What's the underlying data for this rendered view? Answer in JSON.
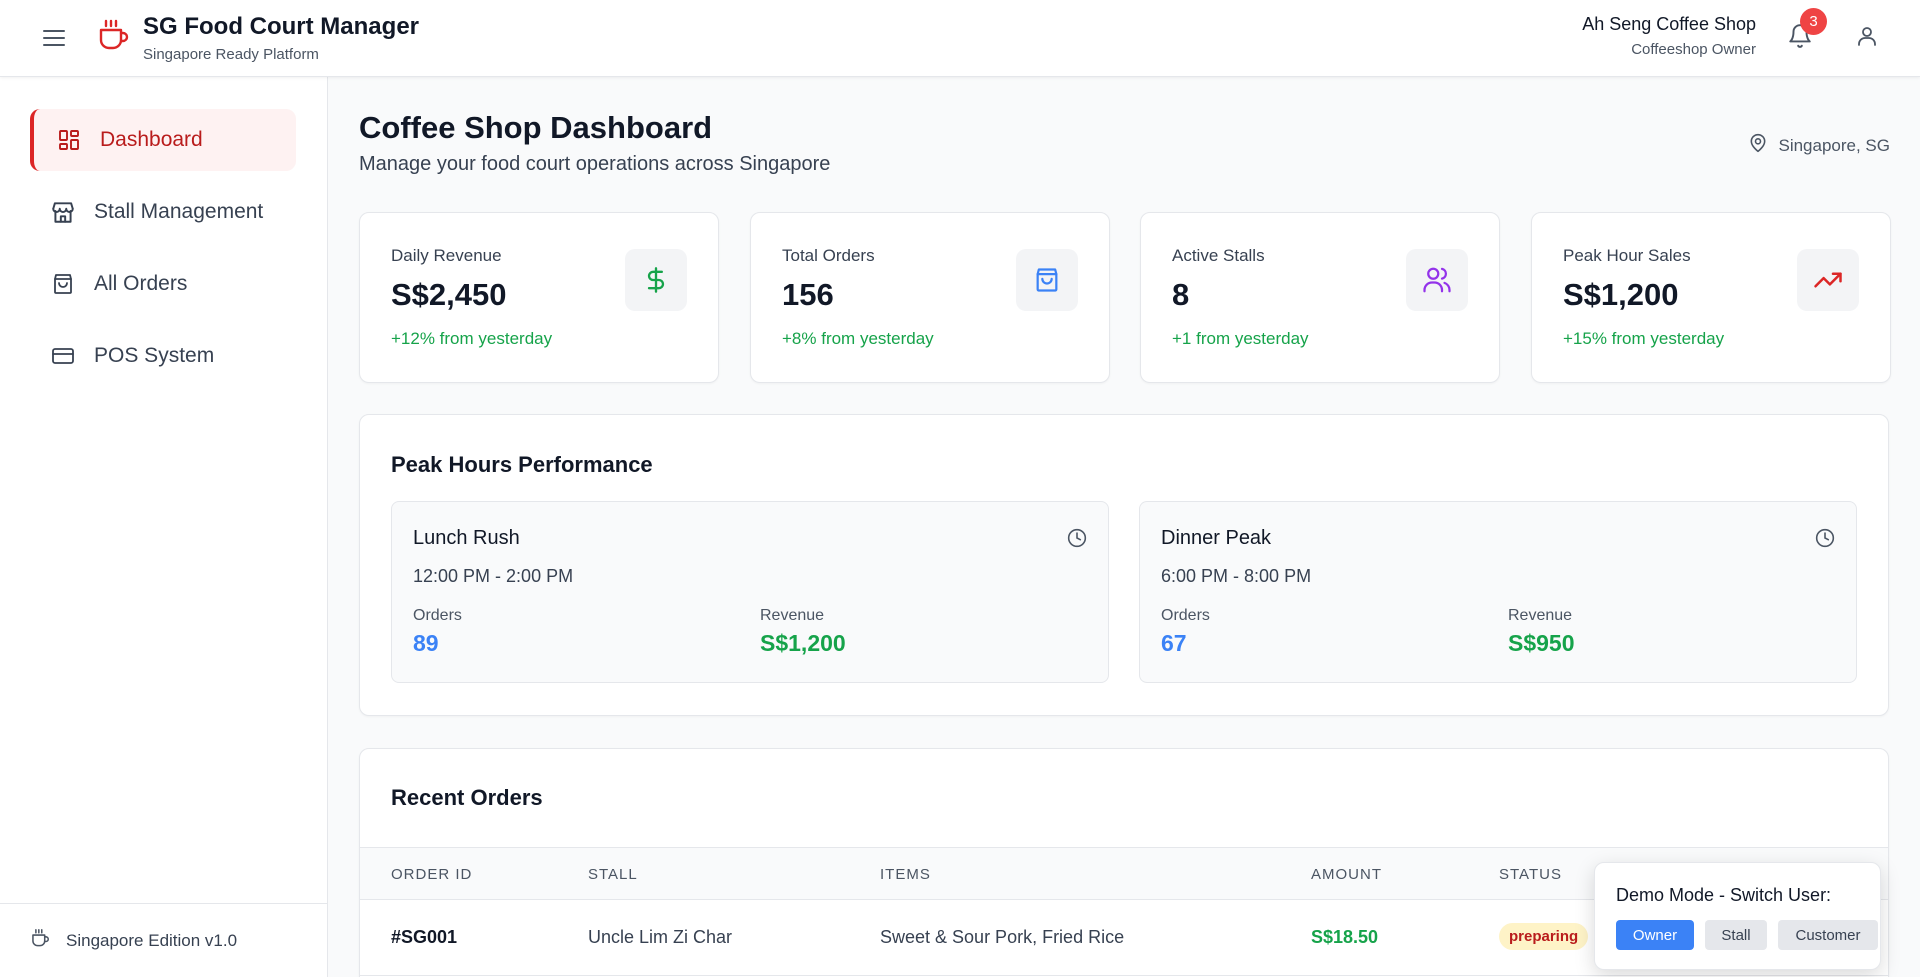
{
  "app": {
    "title": "SG Food Court Manager",
    "subtitle": "Singapore Ready Platform"
  },
  "header": {
    "shop_name": "Ah Seng Coffee Shop",
    "shop_role": "Coffeeshop Owner",
    "notification_count": "3"
  },
  "sidebar": {
    "items": [
      {
        "label": "Dashboard",
        "icon": "dashboard-icon",
        "active": true
      },
      {
        "label": "Stall Management",
        "icon": "store-icon",
        "active": false
      },
      {
        "label": "All Orders",
        "icon": "shopping-bag-icon",
        "active": false
      },
      {
        "label": "POS System",
        "icon": "credit-card-icon",
        "active": false
      }
    ],
    "footer": "Singapore Edition v1.0"
  },
  "page": {
    "title": "Coffee Shop Dashboard",
    "subtitle": "Manage your food court operations across Singapore",
    "location": "Singapore, SG"
  },
  "stats": [
    {
      "label": "Daily Revenue",
      "value": "S$2,450",
      "change": "+12% from yesterday",
      "icon": "dollar-icon",
      "color": "#16a34a"
    },
    {
      "label": "Total Orders",
      "value": "156",
      "change": "+8% from yesterday",
      "icon": "shopping-bag-icon",
      "color": "#3b82f6"
    },
    {
      "label": "Active Stalls",
      "value": "8",
      "change": "+1 from yesterday",
      "icon": "users-icon",
      "color": "#9333ea"
    },
    {
      "label": "Peak Hour Sales",
      "value": "S$1,200",
      "change": "+15% from yesterday",
      "icon": "trending-up-icon",
      "color": "#dc2626"
    }
  ],
  "peak_hours": {
    "title": "Peak Hours Performance",
    "periods": [
      {
        "name": "Lunch Rush",
        "time": "12:00 PM - 2:00 PM",
        "orders_label": "Orders",
        "orders": "89",
        "revenue_label": "Revenue",
        "revenue": "S$1,200"
      },
      {
        "name": "Dinner Peak",
        "time": "6:00 PM - 8:00 PM",
        "orders_label": "Orders",
        "orders": "67",
        "revenue_label": "Revenue",
        "revenue": "S$950"
      }
    ]
  },
  "recent_orders": {
    "title": "Recent Orders",
    "columns": [
      "ORDER ID",
      "STALL",
      "ITEMS",
      "AMOUNT",
      "STATUS"
    ],
    "rows": [
      {
        "order_id": "#SG001",
        "stall": "Uncle Lim Zi Char",
        "items": "Sweet & Sour Pork, Fried Rice",
        "amount": "S$18.50",
        "status": "preparing"
      }
    ]
  },
  "demo": {
    "title": "Demo Mode - Switch User:",
    "buttons": [
      {
        "label": "Owner",
        "active": true
      },
      {
        "label": "Stall",
        "active": false
      },
      {
        "label": "Customer",
        "active": false
      }
    ]
  },
  "colors": {
    "brand": "#dc2626",
    "orders_blue": "#3b82f6",
    "revenue_green": "#16a34a"
  }
}
